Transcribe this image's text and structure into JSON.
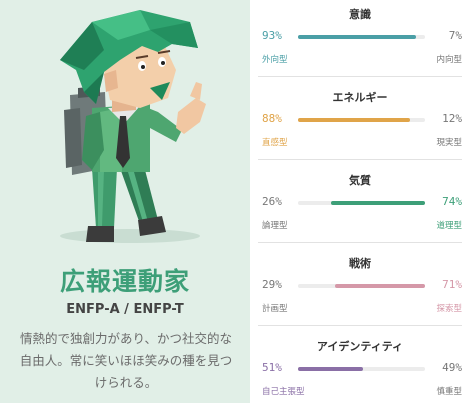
{
  "personality": {
    "name": "広報運動家",
    "code": "ENFP-A / ENFP-T",
    "description": "情熱的で独創力があり、かつ社交的な自由人。常に笑いほほ笑みの種を見つけられる。"
  },
  "colors": {
    "background_left": "#e1efe7",
    "accent_green": "#3d9f78"
  },
  "traits": [
    {
      "title": "意識",
      "left_percent": "93%",
      "right_percent": "7%",
      "left_label": "外向型",
      "right_label": "内向型",
      "value": 0.93,
      "dominant": "left",
      "color": "#4a9fa6"
    },
    {
      "title": "エネルギー",
      "left_percent": "88%",
      "right_percent": "12%",
      "left_label": "直感型",
      "right_label": "現実型",
      "value": 0.88,
      "dominant": "left",
      "color": "#e0a449"
    },
    {
      "title": "気質",
      "left_percent": "26%",
      "right_percent": "74%",
      "left_label": "論理型",
      "right_label": "道理型",
      "value": 0.74,
      "dominant": "right",
      "color": "#3d9f78"
    },
    {
      "title": "戦術",
      "left_percent": "29%",
      "right_percent": "71%",
      "left_label": "計画型",
      "right_label": "探索型",
      "value": 0.71,
      "dominant": "right",
      "color": "#d598a8"
    },
    {
      "title": "アイデンティティ",
      "left_percent": "51%",
      "right_percent": "49%",
      "left_label": "自己主張型",
      "right_label": "慎重型",
      "value": 0.51,
      "dominant": "left",
      "color": "#8a6fa6"
    }
  ]
}
